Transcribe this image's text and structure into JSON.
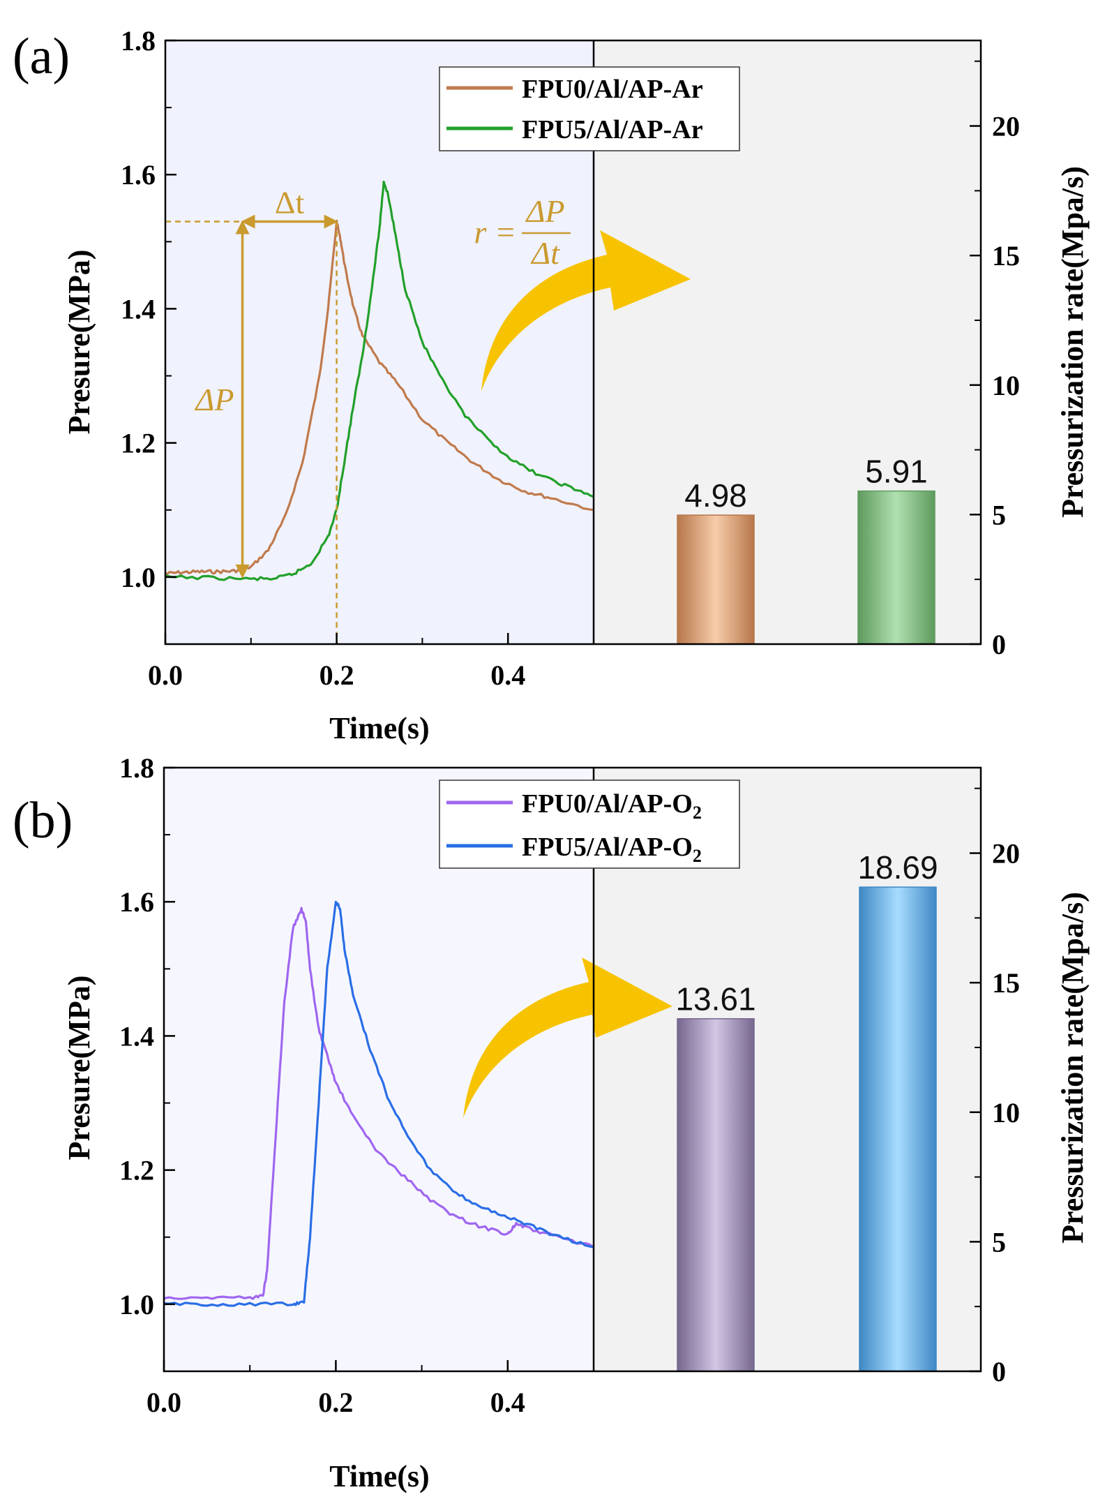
{
  "colors": {
    "panel_left_bg": "#f0f2fd",
    "panel_right_bg": "#f2f2f2",
    "annotation": "#c99a2e",
    "arrow": "#f7c300"
  },
  "chart_data": [
    {
      "type": "line",
      "panel_label": "(a)",
      "xlabel": "Time(s)",
      "ylabel": "Presure(MPa)",
      "y2label": "Pressurization rate(Mpa/s)",
      "xlim": [
        0,
        0.5
      ],
      "ylim": [
        0.9,
        1.8
      ],
      "y2lim": [
        0,
        23.3
      ],
      "xticks": [
        "0.0",
        "0.2",
        "0.4"
      ],
      "yticks": [
        "1.0",
        "1.2",
        "1.4",
        "1.6",
        "1.8"
      ],
      "y2ticks": [
        "0",
        "5",
        "10",
        "15",
        "20"
      ],
      "legend": {
        "position": "top-right",
        "entries": [
          "FPU0/Al/AP-Ar",
          "FPU5/Al/AP-Ar"
        ]
      },
      "series": [
        {
          "name": "FPU0/Al/AP-Ar",
          "color": "#c07a4c",
          "points": [
            [
              0,
              1.005
            ],
            [
              0.02,
              1.007
            ],
            [
              0.04,
              1.008
            ],
            [
              0.06,
              1.008
            ],
            [
              0.08,
              1.009
            ],
            [
              0.1,
              1.015
            ],
            [
              0.12,
              1.04
            ],
            [
              0.14,
              1.09
            ],
            [
              0.16,
              1.17
            ],
            [
              0.18,
              1.3
            ],
            [
              0.19,
              1.4
            ],
            [
              0.2,
              1.53
            ],
            [
              0.205,
              1.5
            ],
            [
              0.21,
              1.46
            ],
            [
              0.22,
              1.4
            ],
            [
              0.23,
              1.36
            ],
            [
              0.25,
              1.32
            ],
            [
              0.27,
              1.29
            ],
            [
              0.3,
              1.235
            ],
            [
              0.33,
              1.2
            ],
            [
              0.36,
              1.17
            ],
            [
              0.39,
              1.145
            ],
            [
              0.42,
              1.128
            ],
            [
              0.45,
              1.118
            ],
            [
              0.5,
              1.1
            ]
          ]
        },
        {
          "name": "FPU5/Al/AP-Ar",
          "color": "#22a02a",
          "points": [
            [
              0,
              1.0
            ],
            [
              0.05,
              0.999
            ],
            [
              0.1,
              0.997
            ],
            [
              0.13,
              0.998
            ],
            [
              0.15,
              1.005
            ],
            [
              0.17,
              1.02
            ],
            [
              0.19,
              1.06
            ],
            [
              0.2,
              1.1
            ],
            [
              0.21,
              1.18
            ],
            [
              0.22,
              1.26
            ],
            [
              0.23,
              1.33
            ],
            [
              0.24,
              1.42
            ],
            [
              0.25,
              1.52
            ],
            [
              0.255,
              1.59
            ],
            [
              0.26,
              1.57
            ],
            [
              0.27,
              1.5
            ],
            [
              0.28,
              1.43
            ],
            [
              0.3,
              1.35
            ],
            [
              0.32,
              1.3
            ],
            [
              0.35,
              1.24
            ],
            [
              0.38,
              1.2
            ],
            [
              0.41,
              1.17
            ],
            [
              0.44,
              1.15
            ],
            [
              0.47,
              1.135
            ],
            [
              0.5,
              1.12
            ]
          ]
        }
      ],
      "bars": {
        "values": [
          4.98,
          5.91
        ],
        "labels": [
          "4.98",
          "5.91"
        ],
        "colors": [
          [
            "#b7774a",
            "#f7ccaa"
          ],
          [
            "#5e9a5e",
            "#b0e0b0"
          ]
        ]
      },
      "annotations": {
        "delta_t": "Δt",
        "delta_p": "ΔP",
        "formula_r": "r =",
        "formula_num": "ΔP",
        "formula_den": "Δt",
        "peak": [
          0.2,
          1.53
        ],
        "onset": [
          0.09,
          1.0
        ]
      }
    },
    {
      "type": "line",
      "panel_label": "(b)",
      "xlabel": "Time(s)",
      "ylabel": "Presure(MPa)",
      "y2label": "Pressurization rate(Mpa/s)",
      "xlim": [
        0,
        0.5
      ],
      "ylim": [
        0.9,
        1.8
      ],
      "y2lim": [
        0,
        23.3
      ],
      "xticks": [
        "0.0",
        "0.2",
        "0.4"
      ],
      "yticks": [
        "1.0",
        "1.2",
        "1.4",
        "1.6",
        "1.8"
      ],
      "y2ticks": [
        "0",
        "5",
        "10",
        "15",
        "20"
      ],
      "legend": {
        "position": "top-right",
        "entries": [
          "FPU0/Al/AP-O",
          "FPU5/Al/AP-O"
        ],
        "subscript": "2"
      },
      "series": [
        {
          "name": "FPU0/Al/AP-O2",
          "color": "#a066f0",
          "points": [
            [
              0,
              1.01
            ],
            [
              0.05,
              1.01
            ],
            [
              0.1,
              1.01
            ],
            [
              0.115,
              1.012
            ],
            [
              0.12,
              1.05
            ],
            [
              0.13,
              1.25
            ],
            [
              0.14,
              1.45
            ],
            [
              0.15,
              1.56
            ],
            [
              0.16,
              1.59
            ],
            [
              0.165,
              1.57
            ],
            [
              0.17,
              1.5
            ],
            [
              0.18,
              1.41
            ],
            [
              0.19,
              1.37
            ],
            [
              0.2,
              1.33
            ],
            [
              0.22,
              1.28
            ],
            [
              0.25,
              1.225
            ],
            [
              0.28,
              1.19
            ],
            [
              0.31,
              1.155
            ],
            [
              0.34,
              1.13
            ],
            [
              0.37,
              1.115
            ],
            [
              0.4,
              1.105
            ],
            [
              0.41,
              1.12
            ],
            [
              0.43,
              1.11
            ],
            [
              0.46,
              1.1
            ],
            [
              0.5,
              1.085
            ]
          ]
        },
        {
          "name": "FPU5/Al/AP-O2",
          "color": "#2a6ee6",
          "points": [
            [
              0,
              1.0
            ],
            [
              0.05,
              1.0
            ],
            [
              0.1,
              1.0
            ],
            [
              0.15,
              1.0
            ],
            [
              0.163,
              1.005
            ],
            [
              0.17,
              1.1
            ],
            [
              0.18,
              1.3
            ],
            [
              0.19,
              1.5
            ],
            [
              0.2,
              1.6
            ],
            [
              0.205,
              1.59
            ],
            [
              0.21,
              1.53
            ],
            [
              0.22,
              1.46
            ],
            [
              0.24,
              1.38
            ],
            [
              0.26,
              1.31
            ],
            [
              0.28,
              1.26
            ],
            [
              0.31,
              1.2
            ],
            [
              0.34,
              1.165
            ],
            [
              0.37,
              1.145
            ],
            [
              0.4,
              1.13
            ],
            [
              0.43,
              1.115
            ],
            [
              0.46,
              1.1
            ],
            [
              0.5,
              1.085
            ]
          ]
        }
      ],
      "bars": {
        "values": [
          13.61,
          18.69
        ],
        "labels": [
          "13.61",
          "18.69"
        ],
        "colors": [
          [
            "#77678f",
            "#d2c6e4"
          ],
          [
            "#3f88c4",
            "#a8dcff"
          ]
        ]
      }
    }
  ]
}
